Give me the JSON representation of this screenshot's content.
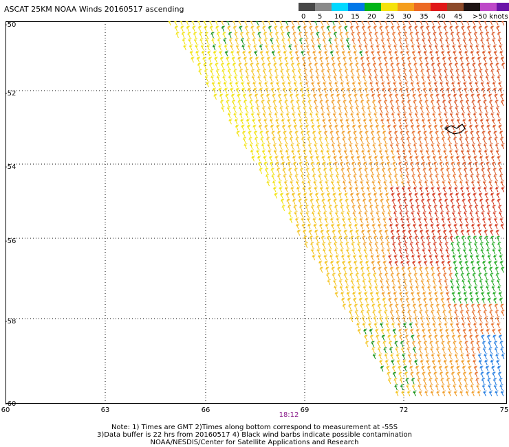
{
  "title": "ASCAT 25KM NOAA Winds 20160517 ascending",
  "colorbar": {
    "colors": [
      "#474747",
      "#8a8a8a",
      "#00d8ff",
      "#0078e8",
      "#00b418",
      "#f5e20a",
      "#f59e1c",
      "#ec6a24",
      "#e01818",
      "#8c4a2a",
      "#1e1414",
      "#bd48c8",
      "#6a14a8"
    ],
    "labels": [
      "0",
      "5",
      "10",
      "15",
      "20",
      "25",
      "30",
      "35",
      "40",
      "45",
      ">50 knots"
    ]
  },
  "lat_labels": [
    "-50",
    "-52",
    "-54",
    "-56",
    "-58",
    "-60"
  ],
  "lon_labels": [
    "60",
    "63",
    "66",
    "69",
    "72",
    "75"
  ],
  "pass_time": "18:12",
  "notes": [
    "Note: 1) Times are GMT 2)Times along bottom correspond to measurement at -55S",
    "3)Data buffer is 22 hrs from 20160517 4) Black wind barbs indicate possible contamination",
    "NOAA/NESDIS/Center for Satellite Applications and Research"
  ]
}
